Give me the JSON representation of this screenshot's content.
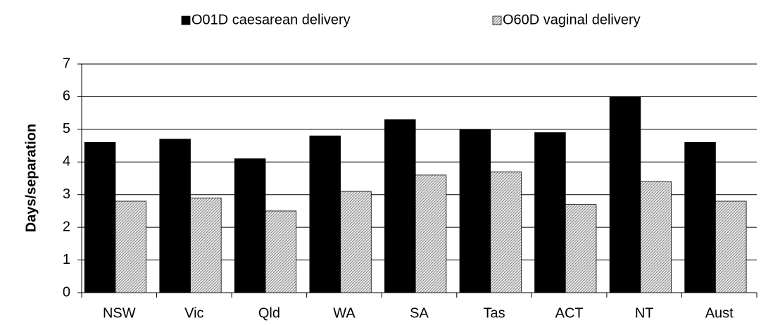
{
  "chart_data": {
    "type": "bar",
    "categories": [
      "NSW",
      "Vic",
      "Qld",
      "WA",
      "SA",
      "Tas",
      "ACT",
      "NT",
      "Aust"
    ],
    "series": [
      {
        "name": "O01D caesarean delivery",
        "color": "#000000",
        "values": [
          4.6,
          4.7,
          4.1,
          4.8,
          5.3,
          5.0,
          4.9,
          6.0,
          4.6
        ]
      },
      {
        "name": "O60D vaginal delivery",
        "color": "#c8c8c8",
        "values": [
          2.8,
          2.9,
          2.5,
          3.1,
          3.6,
          3.7,
          2.7,
          3.4,
          2.8
        ]
      }
    ],
    "y_label": "Days/separation",
    "ylim": [
      0,
      7
    ],
    "yticks": [
      0,
      1,
      2,
      3,
      4,
      5,
      6,
      7
    ],
    "grid": true,
    "legend": "top"
  }
}
